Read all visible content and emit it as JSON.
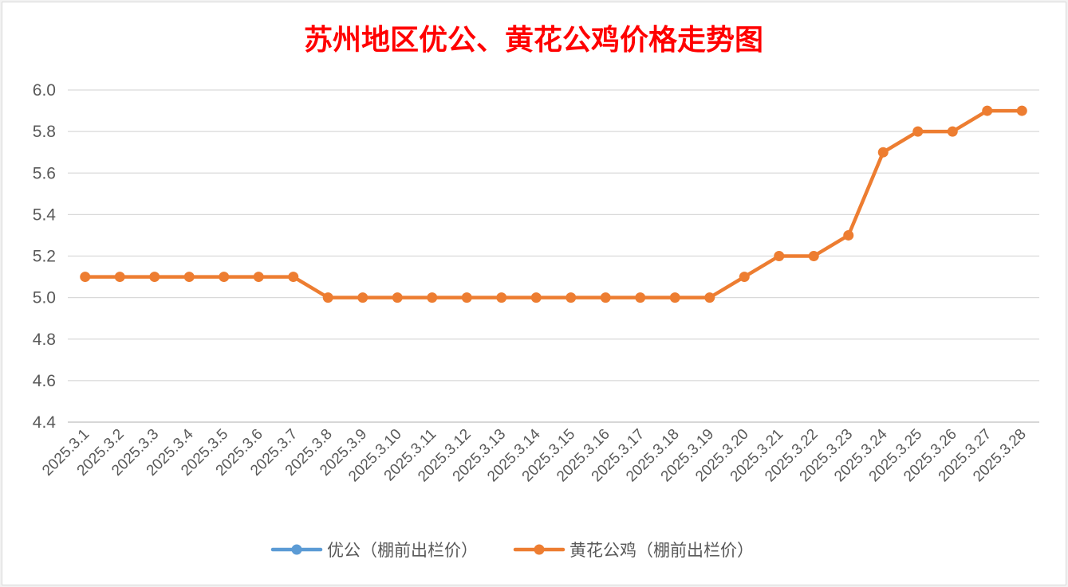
{
  "chart_data": {
    "type": "line",
    "title": "苏州地区优公、黄花公鸡价格走势图",
    "categories": [
      "2025.3.1",
      "2025.3.2",
      "2025.3.3",
      "2025.3.4",
      "2025.3.5",
      "2025.3.6",
      "2025.3.7",
      "2025.3.8",
      "2025.3.9",
      "2025.3.10",
      "2025.3.11",
      "2025.3.12",
      "2025.3.13",
      "2025.3.14",
      "2025.3.15",
      "2025.3.16",
      "2025.3.17",
      "2025.3.18",
      "2025.3.19",
      "2025.3.20",
      "2025.3.21",
      "2025.3.22",
      "2025.3.23",
      "2025.3.24",
      "2025.3.25",
      "2025.3.26",
      "2025.3.27",
      "2025.3.28"
    ],
    "series": [
      {
        "name": "优公（棚前出栏价）",
        "color": "#5b9bd5",
        "values": [
          null,
          null,
          null,
          null,
          null,
          null,
          null,
          null,
          null,
          null,
          null,
          null,
          null,
          null,
          null,
          null,
          null,
          null,
          null,
          null,
          null,
          null,
          null,
          null,
          null,
          null,
          null,
          null
        ]
      },
      {
        "name": "黄花公鸡（棚前出栏价）",
        "color": "#ed7d31",
        "values": [
          5.1,
          5.1,
          5.1,
          5.1,
          5.1,
          5.1,
          5.1,
          5.0,
          5.0,
          5.0,
          5.0,
          5.0,
          5.0,
          5.0,
          5.0,
          5.0,
          5.0,
          5.0,
          5.0,
          5.1,
          5.2,
          5.2,
          5.3,
          5.7,
          5.8,
          5.8,
          5.9,
          5.9
        ]
      }
    ],
    "y_ticks": [
      "4.4",
      "4.6",
      "4.8",
      "5.0",
      "5.2",
      "5.4",
      "5.6",
      "5.8",
      "6.0"
    ],
    "ylim": [
      4.4,
      6.0
    ],
    "grid": true,
    "legend_position": "bottom",
    "title_color": "#ff0000"
  }
}
